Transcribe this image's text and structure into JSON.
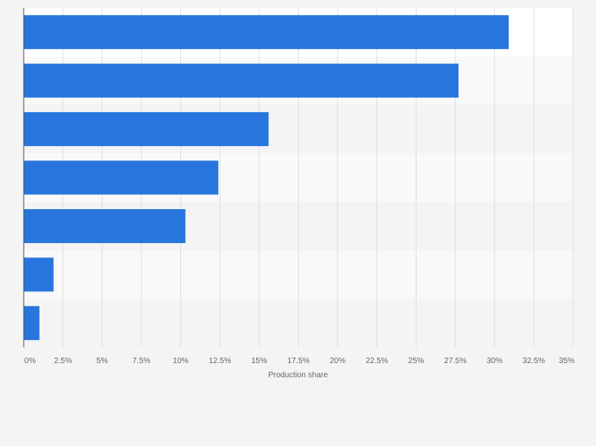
{
  "chart_data": {
    "type": "bar",
    "orientation": "horizontal",
    "categories": [
      "",
      "",
      "",
      "",
      "",
      "",
      ""
    ],
    "values": [
      30.9,
      27.7,
      15.6,
      12.4,
      10.3,
      1.9,
      1.0
    ],
    "title": "",
    "xlabel": "Production share",
    "ylabel": "",
    "xlim": [
      0,
      35
    ],
    "xticks": [
      "0%",
      "2.5%",
      "5%",
      "7.5%",
      "10%",
      "12.5%",
      "15%",
      "17.5%",
      "20%",
      "22.5%",
      "25%",
      "27.5%",
      "30%",
      "32.5%",
      "35%"
    ],
    "grid": true,
    "colors": {
      "bar": "#2876dd",
      "band_light": "#f9f9f9",
      "band_dark": "#f4f4f4",
      "plot_bg": "#ffffff",
      "axis": "#555555",
      "grid": "#dedede",
      "tick_text": "#666666"
    }
  }
}
